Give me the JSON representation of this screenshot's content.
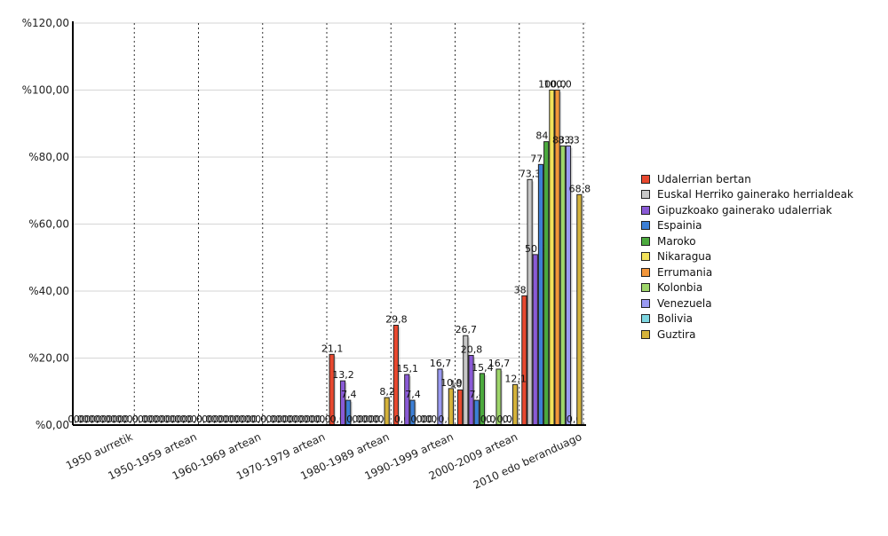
{
  "chart_data": {
    "type": "bar",
    "categories": [
      "1950 aurretik",
      "1950-1959 artean",
      "1960-1969 artean",
      "1970-1979 artean",
      "1980-1989 artean",
      "1990-1999 artean",
      "2000-2009 artean",
      "2010 edo beranduago"
    ],
    "ylim": [
      0,
      120
    ],
    "yticks": [
      0,
      20,
      40,
      60,
      80,
      100,
      120
    ],
    "ytick_labels": [
      "%0,00",
      "%20,00",
      "%40,00",
      "%60,00",
      "%80,00",
      "%100,00",
      "%120,00"
    ],
    "grid": "horizontal lines, dotted vertical separators",
    "legend_position": "right",
    "series": [
      {
        "name": "Udalerrian bertan",
        "color": "#e8482f",
        "values": [
          0,
          0,
          0,
          0,
          21.1,
          29.8,
          10.5,
          38.6
        ],
        "labels": [
          "0,0",
          "0,0",
          "0,0",
          "0,0",
          "21,1",
          "29,8",
          "10,5",
          "38,6"
        ]
      },
      {
        "name": "Euskal Herriko gainerako herrialdeak",
        "color": "#c8c8c8",
        "values": [
          0,
          0,
          0,
          0,
          0,
          0,
          26.7,
          73.3
        ],
        "labels": [
          "0,0",
          "0,0",
          "0,0",
          "0,0",
          "0,0",
          "0,0",
          "26,7",
          "73,3"
        ]
      },
      {
        "name": "Gipuzkoako gainerako udalerriak",
        "color": "#8a5ad6",
        "values": [
          0,
          0,
          0,
          0,
          13.2,
          15.1,
          20.8,
          50.9
        ],
        "labels": [
          "0,0",
          "0,0",
          "0,0",
          "0,0",
          "13,2",
          "15,1",
          "20,8",
          "50,9"
        ]
      },
      {
        "name": "Espainia",
        "color": "#3c7fd6",
        "values": [
          0,
          0,
          0,
          0,
          7.4,
          7.4,
          7.4,
          77.8
        ],
        "labels": [
          "0,0",
          "0,0",
          "0,0",
          "0,0",
          "7,4",
          "7,4",
          "7,4",
          "77,8"
        ]
      },
      {
        "name": "Maroko",
        "color": "#4caa3e",
        "values": [
          0,
          0,
          0,
          0,
          0,
          0,
          15.4,
          84.6
        ],
        "labels": [
          "0,0",
          "0,0",
          "0,0",
          "0,0",
          "0,0",
          "0,0",
          "15,4",
          "84,6"
        ]
      },
      {
        "name": "Nikaragua",
        "color": "#f2e25a",
        "values": [
          0,
          0,
          0,
          0,
          0,
          0,
          0,
          100
        ],
        "labels": [
          "0,0",
          "0,0",
          "0,0",
          "0,0",
          "0,0",
          "0,0",
          "0,0",
          "100,0"
        ]
      },
      {
        "name": "Errumania",
        "color": "#f2963a",
        "values": [
          0,
          0,
          0,
          0,
          0,
          0,
          0,
          100
        ],
        "labels": [
          "0,0",
          "0,0",
          "0,0",
          "0,0",
          "0,0",
          "0,0",
          "0,0",
          "100,0"
        ]
      },
      {
        "name": "Kolonbia",
        "color": "#9ed66a",
        "values": [
          0,
          0,
          0,
          0,
          0,
          0,
          16.7,
          83.3
        ],
        "labels": [
          "0,0",
          "0,0",
          "0,0",
          "0,0",
          "0,0",
          "0,0",
          "16,7",
          "83,3"
        ]
      },
      {
        "name": "Venezuela",
        "color": "#9a9af2",
        "values": [
          0,
          0,
          0,
          0,
          0,
          16.7,
          0,
          83.3
        ],
        "labels": [
          "0,0",
          "0,0",
          "0,0",
          "0,0",
          "0,0",
          "16,7",
          "0,0",
          "83,3"
        ]
      },
      {
        "name": "Bolivia",
        "color": "#7dd6e0",
        "values": [
          0,
          0,
          0,
          0,
          0,
          0,
          0,
          0
        ],
        "labels": [
          "0,0",
          "0,0",
          "0,0",
          "0,0",
          "0,0",
          "0,0",
          "0,0",
          "0,0"
        ]
      },
      {
        "name": "Guztira",
        "color": "#d4b23a",
        "values": [
          0,
          0,
          0,
          0,
          8.2,
          10.9,
          12.1,
          68.8
        ],
        "labels": [
          "0,0",
          "0,0",
          "0,0",
          "0,0",
          "8,2",
          "10,9",
          "12,1",
          "68,8"
        ]
      }
    ]
  }
}
